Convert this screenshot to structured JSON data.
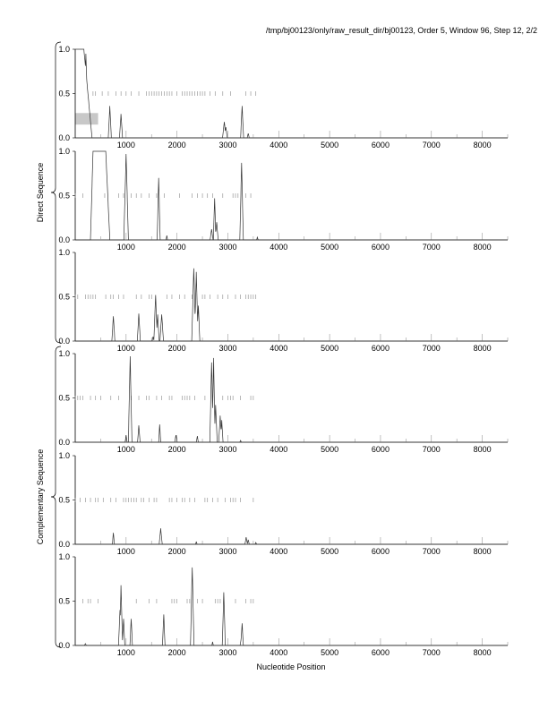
{
  "header": "/tmp/bj00123/only/raw_result_dir/bj00123, Order 5, Window 96, Step 12, 2/2",
  "chart_data": {
    "type": "line",
    "xlabel": "Nucleotide Position",
    "xlim": [
      0,
      8500
    ],
    "ylim": [
      0,
      1
    ],
    "x_ticks": [
      "1000",
      "2000",
      "3000",
      "4000",
      "5000",
      "6000",
      "7000",
      "8000"
    ],
    "y_ticks": [
      "0.0",
      "0.5",
      "1.0"
    ],
    "groups": [
      {
        "label": "Direct Sequence",
        "panels": [
          0,
          1,
          2
        ]
      },
      {
        "label": "Complementary Sequence",
        "panels": [
          3,
          4,
          5
        ]
      }
    ],
    "panels": [
      {
        "plateaus": [
          [
            0,
            170,
            330,
            1.0
          ]
        ],
        "peaks": [
          [
            210,
            0.95,
            50
          ],
          [
            680,
            0.36,
            30
          ],
          [
            900,
            0.27,
            30
          ],
          [
            2930,
            0.18,
            35
          ],
          [
            2960,
            0.12,
            30
          ],
          [
            3280,
            0.36,
            30
          ],
          [
            3400,
            0.05,
            20
          ]
        ],
        "shaded_box": [
          0,
          450,
          0.15,
          0.28
        ],
        "stops": [
          350,
          400,
          530,
          650,
          800,
          900,
          1000,
          1100,
          1250,
          1400,
          1450,
          1500,
          1550,
          1600,
          1650,
          1700,
          1750,
          1800,
          1850,
          1900,
          2000,
          2100,
          2150,
          2200,
          2250,
          2300,
          2350,
          2400,
          2450,
          2500,
          2550,
          2650,
          2750,
          2900,
          3050,
          3350,
          3450,
          3550
        ]
      },
      {
        "plateaus": [
          [
            300,
            350,
            600,
            680,
            1.0
          ]
        ],
        "peaks": [
          [
            650,
            0.25,
            25
          ],
          [
            1000,
            0.97,
            45
          ],
          [
            1640,
            0.7,
            30
          ],
          [
            1800,
            0.05,
            15
          ],
          [
            2680,
            0.12,
            30
          ],
          [
            2740,
            0.47,
            25
          ],
          [
            2780,
            0.2,
            30
          ],
          [
            3270,
            0.87,
            35
          ],
          [
            3580,
            0.03,
            15
          ]
        ],
        "stops": [
          0,
          150,
          580,
          850,
          950,
          1100,
          1200,
          1300,
          1450,
          1600,
          1750,
          2050,
          2300,
          2400,
          2500,
          2600,
          2700,
          2900,
          3100,
          3150,
          3200,
          3350,
          3450
        ]
      },
      {
        "plateaus": [],
        "peaks": [
          [
            750,
            0.28,
            30
          ],
          [
            1250,
            0.31,
            30
          ],
          [
            1530,
            0.05,
            20
          ],
          [
            1580,
            0.52,
            35
          ],
          [
            1620,
            0.3,
            30
          ],
          [
            1700,
            0.3,
            35
          ],
          [
            2330,
            0.82,
            40
          ],
          [
            2380,
            0.78,
            35
          ],
          [
            2420,
            0.4,
            30
          ]
        ],
        "stops": [
          0,
          50,
          200,
          250,
          300,
          350,
          400,
          600,
          700,
          750,
          850,
          950,
          1200,
          1300,
          1450,
          1500,
          1800,
          1900,
          2050,
          2150,
          2300,
          2500,
          2550,
          2650,
          2800,
          2900,
          3000,
          3150,
          3250,
          3350,
          3400,
          3450,
          3500,
          3550
        ]
      },
      {
        "plateaus": [],
        "peaks": [
          [
            1000,
            0.08,
            20
          ],
          [
            1080,
            0.97,
            35
          ],
          [
            1250,
            0.19,
            25
          ],
          [
            1660,
            0.2,
            20
          ],
          [
            1980,
            0.08,
            25
          ],
          [
            2400,
            0.07,
            20
          ],
          [
            2680,
            0.9,
            35
          ],
          [
            2720,
            0.95,
            30
          ],
          [
            2760,
            0.42,
            30
          ],
          [
            2850,
            0.3,
            30
          ],
          [
            2880,
            0.25,
            25
          ],
          [
            3250,
            0.02,
            15
          ]
        ],
        "stops": [
          0,
          50,
          100,
          150,
          300,
          400,
          500,
          700,
          850,
          1100,
          1250,
          1400,
          1450,
          1600,
          1700,
          1850,
          1900,
          2100,
          2150,
          2200,
          2250,
          2350,
          2550,
          2900,
          3000,
          3050,
          3100,
          3250,
          3450,
          3500
        ]
      },
      {
        "plateaus": [],
        "peaks": [
          [
            750,
            0.13,
            20
          ],
          [
            1680,
            0.18,
            30
          ],
          [
            2380,
            0.03,
            15
          ],
          [
            3360,
            0.08,
            25
          ],
          [
            3400,
            0.05,
            20
          ],
          [
            3550,
            0.02,
            15
          ]
        ],
        "stops": [
          0,
          100,
          200,
          300,
          400,
          450,
          550,
          700,
          800,
          950,
          1000,
          1050,
          1100,
          1150,
          1200,
          1300,
          1350,
          1450,
          1550,
          1600,
          1850,
          1900,
          2000,
          2100,
          2150,
          2250,
          2350,
          2550,
          2600,
          2700,
          2800,
          2950,
          3050,
          3100,
          3150,
          3250,
          3500
        ]
      },
      {
        "plateaus": [],
        "peaks": [
          [
            200,
            0.02,
            20
          ],
          [
            880,
            0.4,
            30
          ],
          [
            900,
            0.68,
            30
          ],
          [
            950,
            0.3,
            25
          ],
          [
            1100,
            0.3,
            25
          ],
          [
            1740,
            0.35,
            25
          ],
          [
            2300,
            0.88,
            35
          ],
          [
            2700,
            0.04,
            15
          ],
          [
            2920,
            0.6,
            30
          ],
          [
            3260,
            0.07,
            20
          ],
          [
            3280,
            0.25,
            25
          ]
        ],
        "stops": [
          150,
          250,
          300,
          450,
          1200,
          1450,
          1600,
          1900,
          1950,
          2000,
          2200,
          2250,
          2400,
          2500,
          2750,
          2800,
          2850,
          3150,
          3350,
          3450,
          3500
        ]
      }
    ]
  }
}
